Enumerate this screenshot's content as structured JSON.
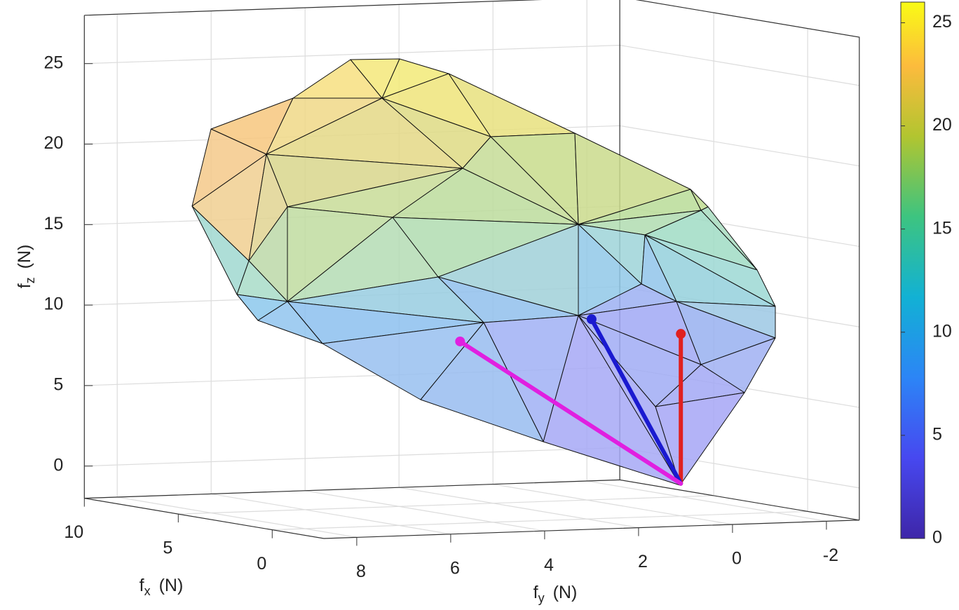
{
  "chart_data": {
    "type": "surface3d",
    "xlabel": {
      "base": "f",
      "sub": "x",
      "unit": "(N)"
    },
    "ylabel": {
      "base": "f",
      "sub": "y",
      "unit": "(N)"
    },
    "zlabel": {
      "base": "f",
      "sub": "z",
      "unit": "(N)"
    },
    "xlim": [
      -2.75,
      10
    ],
    "ylim": [
      -2.7,
      8.7
    ],
    "zlim": [
      -2,
      28
    ],
    "xticks": [
      0,
      5,
      10
    ],
    "yticks": [
      -2,
      0,
      2,
      4,
      6,
      8
    ],
    "zticks": [
      0,
      5,
      10,
      15,
      20,
      25
    ],
    "grid": true,
    "clim": [
      0,
      26
    ],
    "cticks": [
      0,
      5,
      10,
      15,
      20,
      25
    ],
    "vectors": [
      {
        "color": "#e02020",
        "start": [
          0,
          0,
          0
        ],
        "end": [
          0,
          0,
          9.3
        ]
      },
      {
        "color": "#1a1ad0",
        "start": [
          0,
          0,
          0
        ],
        "end": [
          0,
          1.9,
          10.4
        ]
      },
      {
        "color": "#e020e0",
        "start": [
          0,
          0,
          0
        ],
        "end": [
          0,
          4.7,
          9.3
        ]
      }
    ]
  }
}
